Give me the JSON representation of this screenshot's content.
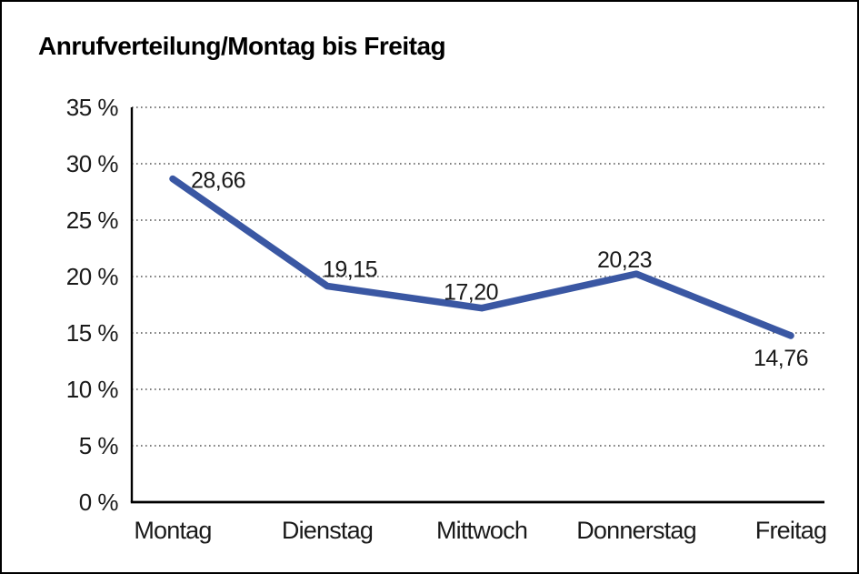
{
  "title": "Anrufverteilung/Montag bis Freitag",
  "colors": {
    "line": "#3A57A3",
    "text": "#1a1a1a",
    "grid": "#555555",
    "axis": "#000000",
    "background": "#ffffff",
    "frame_border": "#000000"
  },
  "chart_data": {
    "type": "line",
    "title": "Anrufverteilung/Montag bis Freitag",
    "categories": [
      "Montag",
      "Dienstag",
      "Mittwoch",
      "Donnerstag",
      "Freitag"
    ],
    "values": [
      28.66,
      19.15,
      17.2,
      20.23,
      14.76
    ],
    "value_labels": [
      "28,66",
      "19,15",
      "17,20",
      "20,23",
      "14,76"
    ],
    "xlabel": "",
    "ylabel": "",
    "ylim": [
      0,
      35
    ],
    "y_ticks": [
      {
        "value": 0,
        "label": "0 %"
      },
      {
        "value": 5,
        "label": "5 %"
      },
      {
        "value": 10,
        "label": "10 %"
      },
      {
        "value": 15,
        "label": "15 %"
      },
      {
        "value": 20,
        "label": "20 %"
      },
      {
        "value": 25,
        "label": "25 %"
      },
      {
        "value": 30,
        "label": "30 %"
      },
      {
        "value": 35,
        "label": "35 %"
      }
    ],
    "grid": "horizontal-dotted",
    "legend": "none",
    "line_color": "#3A57A3",
    "markers": "none"
  }
}
